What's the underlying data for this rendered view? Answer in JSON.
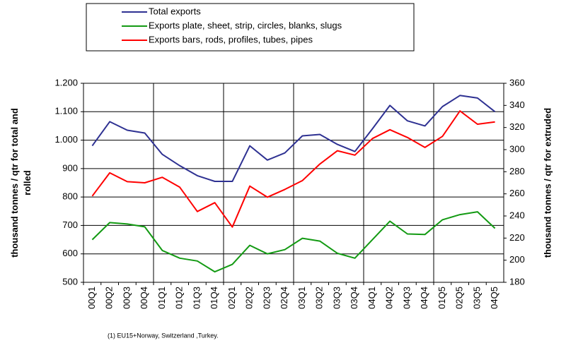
{
  "chart_data": {
    "type": "line",
    "y_label": "thousand tonnes / qtr for total and rolled",
    "y2_label": "thousand tonnes / qtr for extruded",
    "footnote": "(1) EU15+Norway, Switzerland ,Turkey.",
    "categories": [
      "00Q1",
      "00Q2",
      "00Q3",
      "00Q4",
      "01Q1",
      "01Q2",
      "01Q3",
      "01Q4",
      "02Q1",
      "02Q2",
      "02Q3",
      "02Q4",
      "03Q1",
      "03Q2",
      "03Q3",
      "03Q4",
      "04Q1",
      "04Q2",
      "04Q3",
      "04Q4",
      "01Q5",
      "02Q5",
      "03Q5",
      "04Q5"
    ],
    "series": [
      {
        "name": "Total exports",
        "color": "#2e3192",
        "axis": "y",
        "values": [
          980,
          1065,
          1035,
          1025,
          950,
          910,
          875,
          855,
          855,
          980,
          930,
          955,
          1015,
          1020,
          985,
          960,
          1040,
          1122,
          1068,
          1050,
          1118,
          1157,
          1148,
          1100
        ]
      },
      {
        "name": "Exports plate, sheet, strip, circles, blanks, slugs",
        "color": "#139a13",
        "axis": "y",
        "values": [
          650,
          710,
          705,
          695,
          612,
          585,
          575,
          537,
          563,
          630,
          600,
          615,
          655,
          645,
          602,
          585,
          650,
          715,
          670,
          668,
          720,
          738,
          748,
          690
        ]
      },
      {
        "name": "Exports bars, rods, profiles, tubes, pipes",
        "color": "#ff0000",
        "axis": "y2",
        "values": [
          258,
          279,
          271,
          270,
          275,
          266,
          244,
          252,
          230,
          267,
          257,
          264,
          272,
          287,
          299,
          295,
          310,
          318,
          311,
          302,
          312,
          335,
          323,
          325
        ]
      }
    ],
    "ylim": [
      500,
      1200
    ],
    "yticks": [
      500,
      600,
      700,
      800,
      900,
      {
        "value": 1000,
        "label": "1.000"
      },
      {
        "value": 1100,
        "label": "1.100"
      },
      {
        "value": 1200,
        "label": "1.200"
      }
    ],
    "y2lim": [
      180,
      360
    ],
    "y2ticks": [
      180,
      200,
      220,
      240,
      260,
      280,
      300,
      320,
      340,
      360
    ],
    "grid": true
  }
}
